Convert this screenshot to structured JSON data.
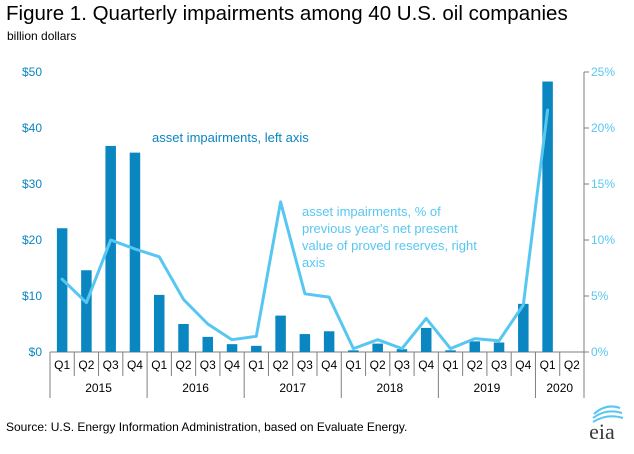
{
  "figure": {
    "title": "Figure 1. Quarterly impairments among 40 U.S. oil companies",
    "unit_label": "billion dollars",
    "source": "Source: U.S. Energy Information Administration, based on Evaluate Energy.",
    "logo_text": "eia"
  },
  "colors": {
    "bar": "#0a86c0",
    "line": "#57c7f2",
    "left_axis_text": "#0a86c0",
    "right_axis_text": "#57c7f2",
    "axis": "#7f7f7f"
  },
  "chart_data": {
    "type": "bar",
    "categories": [
      "Q1",
      "Q2",
      "Q3",
      "Q4",
      "Q1",
      "Q2",
      "Q3",
      "Q4",
      "Q1",
      "Q2",
      "Q3",
      "Q4",
      "Q1",
      "Q2",
      "Q3",
      "Q4",
      "Q1",
      "Q2",
      "Q3",
      "Q4",
      "Q1",
      "Q2"
    ],
    "years": [
      {
        "label": "2015",
        "start": 0,
        "count": 4
      },
      {
        "label": "2016",
        "start": 4,
        "count": 4
      },
      {
        "label": "2017",
        "start": 8,
        "count": 4
      },
      {
        "label": "2018",
        "start": 12,
        "count": 4
      },
      {
        "label": "2019",
        "start": 16,
        "count": 4
      },
      {
        "label": "2020",
        "start": 20,
        "count": 2
      }
    ],
    "series": [
      {
        "name": "asset impairments, left axis",
        "type": "bar",
        "axis": "left",
        "values": [
          22.1,
          14.6,
          36.8,
          35.6,
          10.2,
          5.0,
          2.7,
          1.4,
          1.1,
          6.5,
          3.2,
          3.7,
          0.3,
          1.5,
          0.5,
          4.3,
          0.3,
          1.9,
          1.7,
          8.6,
          48.3,
          null
        ]
      },
      {
        "name": "asset impairments, % of previous year's net present value of proved reserves, right axis",
        "type": "line",
        "axis": "right",
        "values": [
          6.5,
          4.4,
          10.0,
          9.2,
          8.5,
          4.7,
          2.5,
          1.1,
          1.4,
          13.4,
          5.2,
          4.9,
          0.3,
          1.1,
          0.3,
          3.0,
          0.3,
          1.2,
          1.0,
          4.2,
          21.6,
          null
        ]
      }
    ],
    "annotations": [
      {
        "lines": [
          "asset impairments, left axis"
        ]
      },
      {
        "lines": [
          "asset impairments, % of",
          "previous year's net present",
          "value of proved reserves, right",
          "axis"
        ]
      }
    ],
    "left_axis": {
      "ylim": [
        0,
        50
      ],
      "ticks": [
        0,
        10,
        20,
        30,
        40,
        50
      ],
      "tick_labels": [
        "$0",
        "$10",
        "$20",
        "$30",
        "$40",
        "$50"
      ]
    },
    "right_axis": {
      "ylim": [
        0,
        25
      ],
      "ticks": [
        0,
        5,
        10,
        15,
        20,
        25
      ],
      "tick_labels": [
        "0%",
        "5%",
        "10%",
        "15%",
        "20%",
        "25%"
      ]
    },
    "grid": false,
    "legend": "none"
  }
}
